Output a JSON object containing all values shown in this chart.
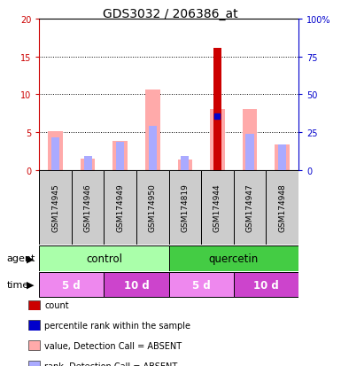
{
  "title": "GDS3032 / 206386_at",
  "samples": [
    "GSM174945",
    "GSM174946",
    "GSM174949",
    "GSM174950",
    "GSM174819",
    "GSM174944",
    "GSM174947",
    "GSM174948"
  ],
  "count_values": [
    0,
    0,
    0,
    0,
    0,
    16.1,
    0,
    0
  ],
  "rank_values": [
    0,
    0,
    0,
    0,
    0,
    35.5,
    0,
    0
  ],
  "absent_value_heights": [
    5.1,
    1.5,
    3.8,
    10.6,
    1.3,
    8.0,
    8.0,
    3.4
  ],
  "absent_rank_heights": [
    4.3,
    1.8,
    3.7,
    5.8,
    1.8,
    0,
    4.7,
    3.4
  ],
  "ylim_left": [
    0,
    20
  ],
  "ylim_right": [
    0,
    100
  ],
  "yticks_left": [
    0,
    5,
    10,
    15,
    20
  ],
  "yticks_right": [
    0,
    25,
    50,
    75,
    100
  ],
  "yticklabels_right": [
    "0",
    "25",
    "50",
    "75",
    "100%"
  ],
  "color_count": "#cc0000",
  "color_rank": "#0000cc",
  "color_absent_value": "#ffaaaa",
  "color_absent_rank": "#aaaaff",
  "color_sample_bg": "#cccccc",
  "agent_groups": [
    {
      "label": "control",
      "start": 0,
      "end": 4,
      "color": "#aaffaa"
    },
    {
      "label": "quercetin",
      "start": 4,
      "end": 8,
      "color": "#44cc44"
    }
  ],
  "time_groups": [
    {
      "label": "5 d",
      "start": 0,
      "end": 2,
      "color": "#ee88ee"
    },
    {
      "label": "10 d",
      "start": 2,
      "end": 4,
      "color": "#cc44cc"
    },
    {
      "label": "5 d",
      "start": 4,
      "end": 6,
      "color": "#ee88ee"
    },
    {
      "label": "10 d",
      "start": 6,
      "end": 8,
      "color": "#cc44cc"
    }
  ],
  "legend_items": [
    {
      "color": "#cc0000",
      "label": "count"
    },
    {
      "color": "#0000cc",
      "label": "percentile rank within the sample"
    },
    {
      "color": "#ffaaaa",
      "label": "value, Detection Call = ABSENT"
    },
    {
      "color": "#aaaaff",
      "label": "rank, Detection Call = ABSENT"
    }
  ],
  "bar_width": 0.45,
  "rank_bar_width": 0.25
}
